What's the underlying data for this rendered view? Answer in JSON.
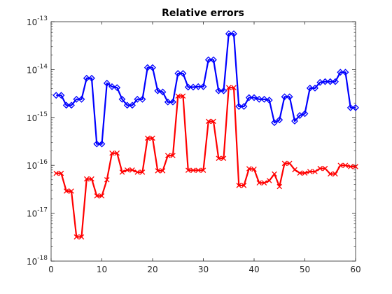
{
  "chart_data": {
    "type": "line",
    "title": "Relative errors",
    "xlabel": "",
    "ylabel": "",
    "xlim": [
      0,
      60
    ],
    "ylim": [
      1e-18,
      1e-13
    ],
    "yscale": "log",
    "grid": false,
    "xticks": [
      0,
      10,
      20,
      30,
      40,
      50,
      60
    ],
    "yticks": [
      {
        "base": "10",
        "exp": "-18"
      },
      {
        "base": "10",
        "exp": "-17"
      },
      {
        "base": "10",
        "exp": "-16"
      },
      {
        "base": "10",
        "exp": "-15"
      },
      {
        "base": "10",
        "exp": "-14"
      },
      {
        "base": "10",
        "exp": "-13"
      }
    ],
    "x": [
      1,
      2,
      3,
      4,
      5,
      6,
      7,
      8,
      9,
      10,
      11,
      12,
      13,
      14,
      15,
      16,
      17,
      18,
      19,
      20,
      21,
      22,
      23,
      24,
      25,
      26,
      27,
      28,
      29,
      30,
      31,
      32,
      33,
      34,
      35,
      36,
      37,
      38,
      39,
      40,
      41,
      42,
      43,
      44,
      45,
      46,
      47,
      48,
      49,
      50,
      51,
      52,
      53,
      54,
      55,
      56,
      57,
      58,
      59,
      60
    ],
    "series": [
      {
        "color": "#0000ff",
        "marker": "diamond",
        "values": [
          2.9e-15,
          2.9e-15,
          1.8e-15,
          1.8e-15,
          2.4e-15,
          2.4e-15,
          6.6e-15,
          6.6e-15,
          2.8e-16,
          2.8e-16,
          5.2e-15,
          4.4e-15,
          4.2e-15,
          2.4e-15,
          1.8e-15,
          1.8e-15,
          2.4e-15,
          2.4e-15,
          1.1e-14,
          1.1e-14,
          3.6e-15,
          3.4e-15,
          2.1e-15,
          2.1e-15,
          8.3e-15,
          8.3e-15,
          4.3e-15,
          4.3e-15,
          4.4e-15,
          4.4e-15,
          1.6e-14,
          1.6e-14,
          3.6e-15,
          3.6e-15,
          5.6e-14,
          5.6e-14,
          1.7e-15,
          1.7e-15,
          2.6e-15,
          2.6e-15,
          2.4e-15,
          2.4e-15,
          2.3e-15,
          7.8e-16,
          8.9e-16,
          2.7e-15,
          2.7e-15,
          8.4e-16,
          1.1e-15,
          1.2e-15,
          4.1e-15,
          4.1e-15,
          5.4e-15,
          5.6e-15,
          5.6e-15,
          5.6e-15,
          8.8e-15,
          8.8e-15,
          1.6e-15,
          1.6e-15
        ]
      },
      {
        "color": "#ff0000",
        "marker": "x",
        "values": [
          6.8e-17,
          6.8e-17,
          2.9e-17,
          2.9e-17,
          3.2e-18,
          3.2e-18,
          5.2e-17,
          5.2e-17,
          2.3e-17,
          2.3e-17,
          5e-17,
          1.8e-16,
          1.8e-16,
          7.2e-17,
          8e-17,
          8e-17,
          7.2e-17,
          7.2e-17,
          3.7e-16,
          3.7e-16,
          7.7e-17,
          7.7e-17,
          1.6e-16,
          1.6e-16,
          2.8e-15,
          2.8e-15,
          7.9e-17,
          7.9e-17,
          7.9e-17,
          7.9e-17,
          8.3e-16,
          8.3e-16,
          1.4e-16,
          1.4e-16,
          4.2e-15,
          4.2e-15,
          3.8e-17,
          3.8e-17,
          8.5e-17,
          8.3e-17,
          4.3e-17,
          4.3e-17,
          4.8e-17,
          6.6e-17,
          3.6e-17,
          1.1e-16,
          1.1e-16,
          8.1e-17,
          6.9e-17,
          6.9e-17,
          7.4e-17,
          7.4e-17,
          8.6e-17,
          8.6e-17,
          6.6e-17,
          6.6e-17,
          1e-16,
          1e-16,
          9.4e-17,
          9.4e-17
        ]
      }
    ]
  }
}
